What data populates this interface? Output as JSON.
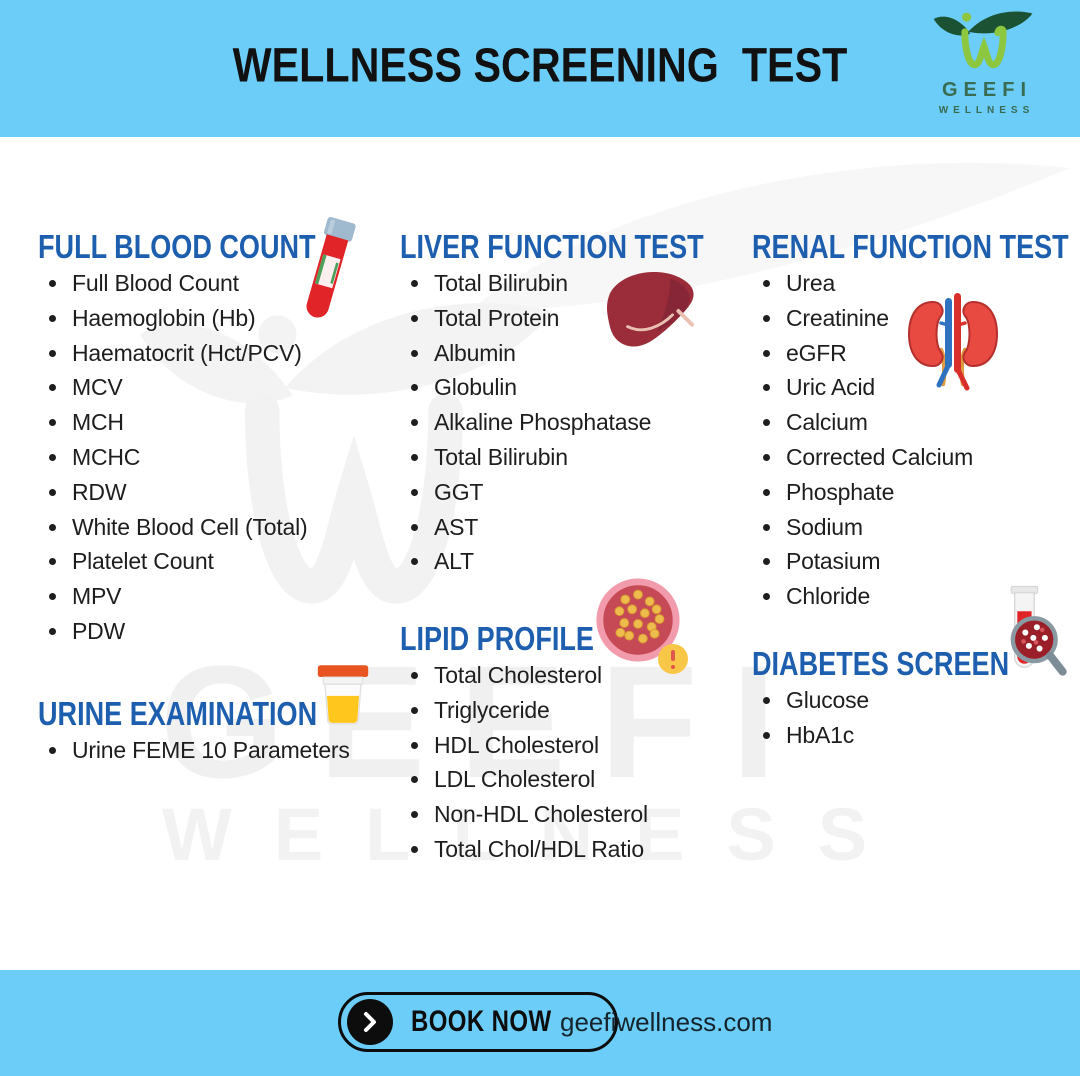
{
  "header": {
    "title": "WELLNESS SCREENING  TEST"
  },
  "logo": {
    "name": "GEEFI",
    "tagline": "WELLNESS"
  },
  "watermark": {
    "line1": "GEEFI",
    "line2": "WELLNESS"
  },
  "sections": {
    "full_blood_count": {
      "title": "FULL BLOOD COUNT",
      "icon": "blood-tube-icon",
      "items": [
        "Full Blood Count",
        "Haemoglobin (Hb)",
        "Haematocrit (Hct/PCV)",
        "MCV",
        "MCH",
        "MCHC",
        "RDW",
        "White Blood Cell (Total)",
        "Platelet Count",
        "MPV",
        "PDW"
      ]
    },
    "urine_examination": {
      "title": "URINE EXAMINATION",
      "icon": "urine-cup-icon",
      "items": [
        "Urine FEME 10 Parameters"
      ]
    },
    "liver_function_test": {
      "title": "LIVER FUNCTION TEST",
      "icon": "liver-icon",
      "items": [
        "Total Bilirubin",
        "Total Protein",
        "Albumin",
        "Globulin",
        "Alkaline Phosphatase",
        "Total Bilirubin",
        "GGT",
        "AST",
        "ALT"
      ]
    },
    "lipid_profile": {
      "title": "LIPID PROFILE",
      "icon": "lipid-blood-vessel-icon",
      "items": [
        "Total Cholesterol",
        "Triglyceride",
        "HDL Cholesterol",
        "LDL Cholesterol",
        "Non-HDL Cholesterol",
        "Total Chol/HDL Ratio"
      ]
    },
    "renal_function_test": {
      "title": "RENAL FUNCTION TEST",
      "icon": "kidneys-icon",
      "items": [
        "Urea",
        "Creatinine",
        "eGFR",
        "Uric Acid",
        "Calcium",
        "Corrected Calcium",
        "Phosphate",
        "Sodium",
        "Potasium",
        "Chloride"
      ]
    },
    "diabetes_screen": {
      "title": "DIABETES SCREEN",
      "icon": "blood-test-magnifier-icon",
      "items": [
        "Glucose",
        "HbA1c"
      ]
    }
  },
  "footer": {
    "cta_label": "BOOK NOW",
    "website": "geefiwellness.com"
  },
  "colors": {
    "banner": "#6bcdf8",
    "heading": "#1d5fae",
    "text": "#1e1e1e",
    "watermark": "#f0f0f0",
    "logo-light-green": "#8dc63f",
    "logo-dark-green": "#1b5233",
    "logo-text-green": "#3a6b53",
    "tube-red": "#e02428",
    "cap-gray-blue": "#9fb9cf",
    "urine-lid-orange": "#e8541f",
    "urine-yellow": "#ffc61e",
    "liver-red": "#9b2d3a",
    "lipid-ring-pink": "#f29bac",
    "lipid-fill-red": "#c64a55",
    "lipid-dot-yellow": "#eebb4d",
    "alert-yellow": "#f9c747",
    "kidney-red": "#e84a42",
    "vessel-blue": "#2f72c0",
    "vessel-red": "#d92f2b",
    "ureter-orange": "#e09a41",
    "magnifier-gray": "#8a9aa3"
  }
}
